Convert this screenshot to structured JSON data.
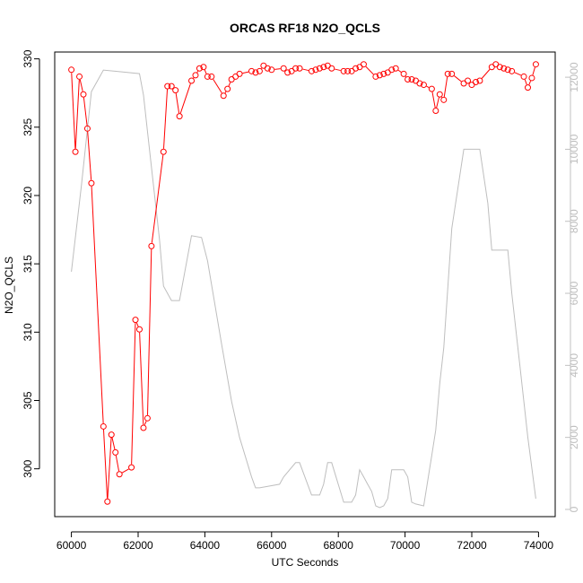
{
  "chart_data": {
    "type": "line",
    "title": "ORCAS RF18 N2O_QCLS",
    "xlabel": "UTC Seconds",
    "ylabel": "N2O_QCLS",
    "xlim": [
      59500,
      74500
    ],
    "ylim": [
      296.5,
      330.5
    ],
    "y2lim": [
      -200,
      12700
    ],
    "xticks": [
      60000,
      62000,
      64000,
      66000,
      68000,
      70000,
      72000,
      74000
    ],
    "yticks": [
      300,
      305,
      310,
      315,
      320,
      325,
      330
    ],
    "y2ticks": [
      0,
      2000,
      4000,
      6000,
      8000,
      10000,
      12000
    ],
    "colors": {
      "primary": "#ff0000",
      "secondary": "#bebebe",
      "axis": "#000000",
      "axis_secondary": "#c0c0c0"
    },
    "grid": false,
    "series": [
      {
        "axis": "left",
        "x": [
          60000,
          60120,
          60240,
          60360,
          60480,
          60600,
          60960,
          61080,
          61200,
          61320,
          61440,
          61800,
          61920,
          62040,
          62160,
          62280,
          62400,
          62760,
          62880,
          63000,
          63120,
          63240,
          63600,
          63720,
          63840,
          63960,
          64080,
          64200,
          64560,
          64680,
          64800,
          64920,
          65040,
          65400,
          65520,
          65640,
          65760,
          65880,
          66000,
          66360,
          66480,
          66600,
          66720,
          66840,
          67200,
          67320,
          67440,
          67560,
          67680,
          67800,
          68160,
          68280,
          68400,
          68520,
          68640,
          68760,
          69120,
          69240,
          69360,
          69480,
          69600,
          69720,
          69960,
          70080,
          70200,
          70320,
          70440,
          70560,
          70800,
          70920,
          71040,
          71160,
          71280,
          71400,
          71760,
          71880,
          72000,
          72120,
          72240,
          72600,
          72720,
          72840,
          72960,
          73080,
          73200,
          73560,
          73680,
          73800,
          73920
        ],
        "y": [
          329.2,
          323.2,
          328.7,
          327.4,
          324.9,
          320.9,
          303.1,
          297.6,
          302.5,
          301.2,
          299.6,
          300.1,
          310.9,
          310.2,
          303.0,
          303.7,
          316.3,
          323.2,
          328.0,
          328.0,
          327.7,
          325.8,
          328.4,
          328.8,
          329.3,
          329.4,
          328.7,
          328.7,
          327.3,
          327.8,
          328.5,
          328.7,
          328.9,
          329.1,
          329.0,
          329.1,
          329.5,
          329.3,
          329.2,
          329.3,
          329.0,
          329.1,
          329.3,
          329.3,
          329.1,
          329.2,
          329.3,
          329.4,
          329.5,
          329.3,
          329.1,
          329.1,
          329.1,
          329.3,
          329.4,
          329.6,
          328.7,
          328.8,
          328.9,
          329.0,
          329.2,
          329.3,
          328.9,
          328.5,
          328.5,
          328.4,
          328.2,
          328.1,
          327.8,
          326.2,
          327.4,
          327.0,
          328.9,
          328.9,
          328.2,
          328.4,
          328.1,
          328.3,
          328.4,
          329.4,
          329.6,
          329.4,
          329.3,
          329.2,
          329.1,
          328.7,
          327.9,
          328.6,
          329.6
        ],
        "points": true
      },
      {
        "axis": "right",
        "x": [
          60000,
          60300,
          60600,
          60960,
          62040,
          62160,
          62280,
          62460,
          62640,
          62760,
          63000,
          63240,
          63600,
          63900,
          64080,
          64500,
          64800,
          65040,
          65400,
          65520,
          65640,
          66240,
          66360,
          66720,
          66840,
          67200,
          67440,
          67560,
          67680,
          67800,
          68160,
          68280,
          68400,
          68520,
          68640,
          68760,
          68880,
          69000,
          69120,
          69240,
          69360,
          69480,
          69600,
          69960,
          70080,
          70200,
          70320,
          70560,
          70800,
          70920,
          71040,
          71160,
          71400,
          71760,
          72000,
          72240,
          72480,
          72600,
          72840,
          73080,
          73200,
          73440,
          73680,
          73920
        ],
        "y": [
          6600,
          9000,
          11600,
          12200,
          12100,
          11500,
          10500,
          9000,
          7500,
          6200,
          5800,
          5800,
          7600,
          7550,
          6900,
          4600,
          3000,
          2000,
          900,
          600,
          600,
          700,
          900,
          1300,
          1300,
          400,
          400,
          700,
          1300,
          1300,
          200,
          200,
          200,
          400,
          1100,
          900,
          700,
          500,
          100,
          50,
          100,
          300,
          1100,
          1100,
          900,
          200,
          150,
          100,
          1500,
          2200,
          3500,
          4500,
          7800,
          10000,
          10000,
          10000,
          8500,
          7200,
          7200,
          7200,
          6000,
          4000,
          2000,
          300
        ],
        "points": false
      }
    ]
  }
}
